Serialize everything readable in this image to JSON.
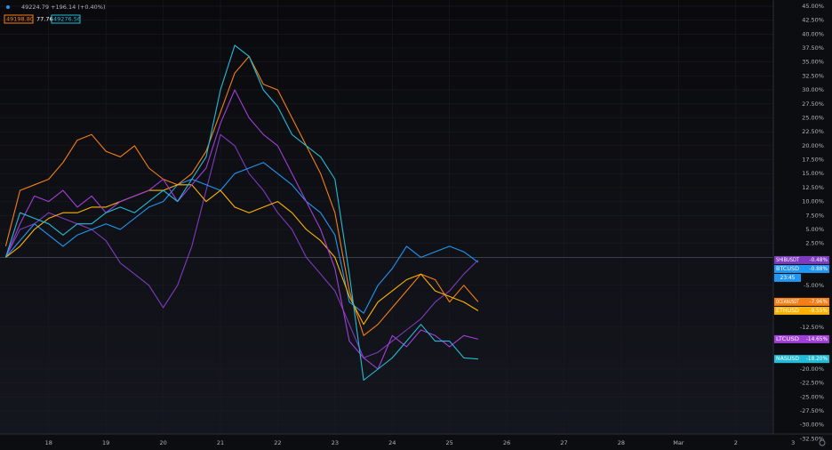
{
  "chart_data": {
    "type": "line",
    "info": {
      "quote": "49224.79 +196.14 (+0.40%)",
      "values": [
        "49198.80",
        "77.76",
        "49276.56"
      ]
    },
    "x": [
      17.25,
      17.5,
      17.75,
      18,
      18.25,
      18.5,
      18.75,
      19,
      19.25,
      19.5,
      19.75,
      20,
      20.25,
      20.5,
      20.75,
      21,
      21.25,
      21.5,
      21.75,
      22,
      22.25,
      22.5,
      22.75,
      23,
      23.25,
      23.5,
      23.75,
      24,
      24.25,
      24.5,
      24.75,
      25,
      25.25,
      25.5
    ],
    "xlim": [
      17.15,
      31.68
    ],
    "xticks": [
      18,
      19,
      20,
      21,
      22,
      23,
      24,
      25,
      26,
      27,
      28,
      {
        "value": 29,
        "label": "Mar"
      },
      {
        "value": 30,
        "label": "2"
      },
      {
        "value": 31,
        "label": "3"
      }
    ],
    "ylim": [
      -34.5,
      46.1
    ],
    "yticks": [
      {
        "value": 45,
        "label": "45.00%"
      },
      {
        "value": 42.5,
        "label": "42.50%"
      },
      {
        "value": 40,
        "label": "40.00%"
      },
      {
        "value": 37.5,
        "label": "37.50%"
      },
      {
        "value": 35,
        "label": "35.00%"
      },
      {
        "value": 32.5,
        "label": "32.50%"
      },
      {
        "value": 30,
        "label": "30.00%"
      },
      {
        "value": 27.5,
        "label": "27.50%"
      },
      {
        "value": 25,
        "label": "25.00%"
      },
      {
        "value": 22.5,
        "label": "22.50%"
      },
      {
        "value": 20,
        "label": "20.00%"
      },
      {
        "value": 17.5,
        "label": "17.50%"
      },
      {
        "value": 15,
        "label": "15.00%"
      },
      {
        "value": 12.5,
        "label": "12.50%"
      },
      {
        "value": 10,
        "label": "10.00%"
      },
      {
        "value": 7.5,
        "label": "7.50%"
      },
      {
        "value": 5,
        "label": "5.00%"
      },
      {
        "value": 2.5,
        "label": "2.50%"
      },
      {
        "value": -5,
        "label": "-5.00%"
      },
      {
        "value": -12.5,
        "label": "-12.50%"
      },
      {
        "value": -20,
        "label": "-20.00%"
      },
      {
        "value": -22.5,
        "label": "-22.50%"
      },
      {
        "value": -25,
        "label": "-25.00%"
      },
      {
        "value": -27.5,
        "label": "-27.50%"
      },
      {
        "value": -30,
        "label": "-30.00%"
      },
      {
        "value": -32.5,
        "label": "-32.50%"
      }
    ],
    "series": [
      {
        "name": "SHIBUSDT",
        "color": "#7e3bbf",
        "last_label": "-0.48%",
        "values": [
          0,
          5,
          6,
          8,
          7,
          6,
          5,
          3,
          -1,
          -3,
          -5,
          -9,
          -5,
          2,
          12,
          22,
          20,
          15,
          12,
          8,
          5,
          0,
          -3,
          -6,
          -12,
          -18,
          -17,
          -15,
          -13,
          -11,
          -8,
          -6,
          -3,
          -0.48
        ]
      },
      {
        "name": "BTCUSD",
        "color": "#2196f3",
        "last_label": "-0.88%",
        "countdown": "23:45",
        "values": [
          0,
          3,
          6,
          4,
          2,
          4,
          5,
          6,
          5,
          7,
          9,
          10,
          13,
          14,
          13,
          12,
          15,
          16,
          17,
          15,
          13,
          10,
          8,
          4,
          -8,
          -10,
          -5,
          -2,
          2,
          0,
          1,
          2,
          1,
          -0.88
        ]
      },
      {
        "name": "OCEANUSDT",
        "color": "#f57f17",
        "last_label": "-7.96%",
        "values": [
          2,
          12,
          13,
          14,
          17,
          21,
          22,
          19,
          18,
          20,
          16,
          14,
          13,
          15,
          19,
          26,
          33,
          36,
          31,
          30,
          25,
          20,
          15,
          8,
          -6,
          -14,
          -12,
          -9,
          -6,
          -3,
          -4,
          -8,
          -5,
          -7.96
        ]
      },
      {
        "name": "ETHUSD",
        "color": "#ffb300",
        "last_label": "-9.55%",
        "values": [
          0,
          2,
          5,
          7,
          8,
          8,
          9,
          9,
          10,
          11,
          12,
          12,
          13,
          13,
          10,
          12,
          9,
          8,
          9,
          10,
          8,
          5,
          3,
          0,
          -7,
          -12,
          -8,
          -6,
          -4,
          -3,
          -6,
          -7,
          -8,
          -9.55
        ]
      },
      {
        "name": "LTCUSD",
        "color": "#a13fd6",
        "last_label": "-14.65%",
        "values": [
          0,
          6,
          11,
          10,
          12,
          9,
          11,
          8,
          10,
          11,
          12,
          14,
          10,
          13,
          16,
          24,
          30,
          25,
          22,
          20,
          15,
          10,
          5,
          -2,
          -15,
          -18,
          -20,
          -14,
          -16,
          -13,
          -14,
          -16,
          -14,
          -14.65
        ]
      },
      {
        "name": "NASUSD",
        "color": "#22bcd6",
        "last_label": "-18.20%",
        "values": [
          0,
          8,
          7,
          6,
          4,
          6,
          6,
          8,
          9,
          8,
          10,
          12,
          10,
          14,
          18,
          30,
          38,
          36,
          30,
          27,
          22,
          20,
          18,
          14,
          -3,
          -22,
          -20,
          -18,
          -15,
          -12,
          -15,
          -15,
          -18,
          -18.2
        ]
      }
    ]
  }
}
